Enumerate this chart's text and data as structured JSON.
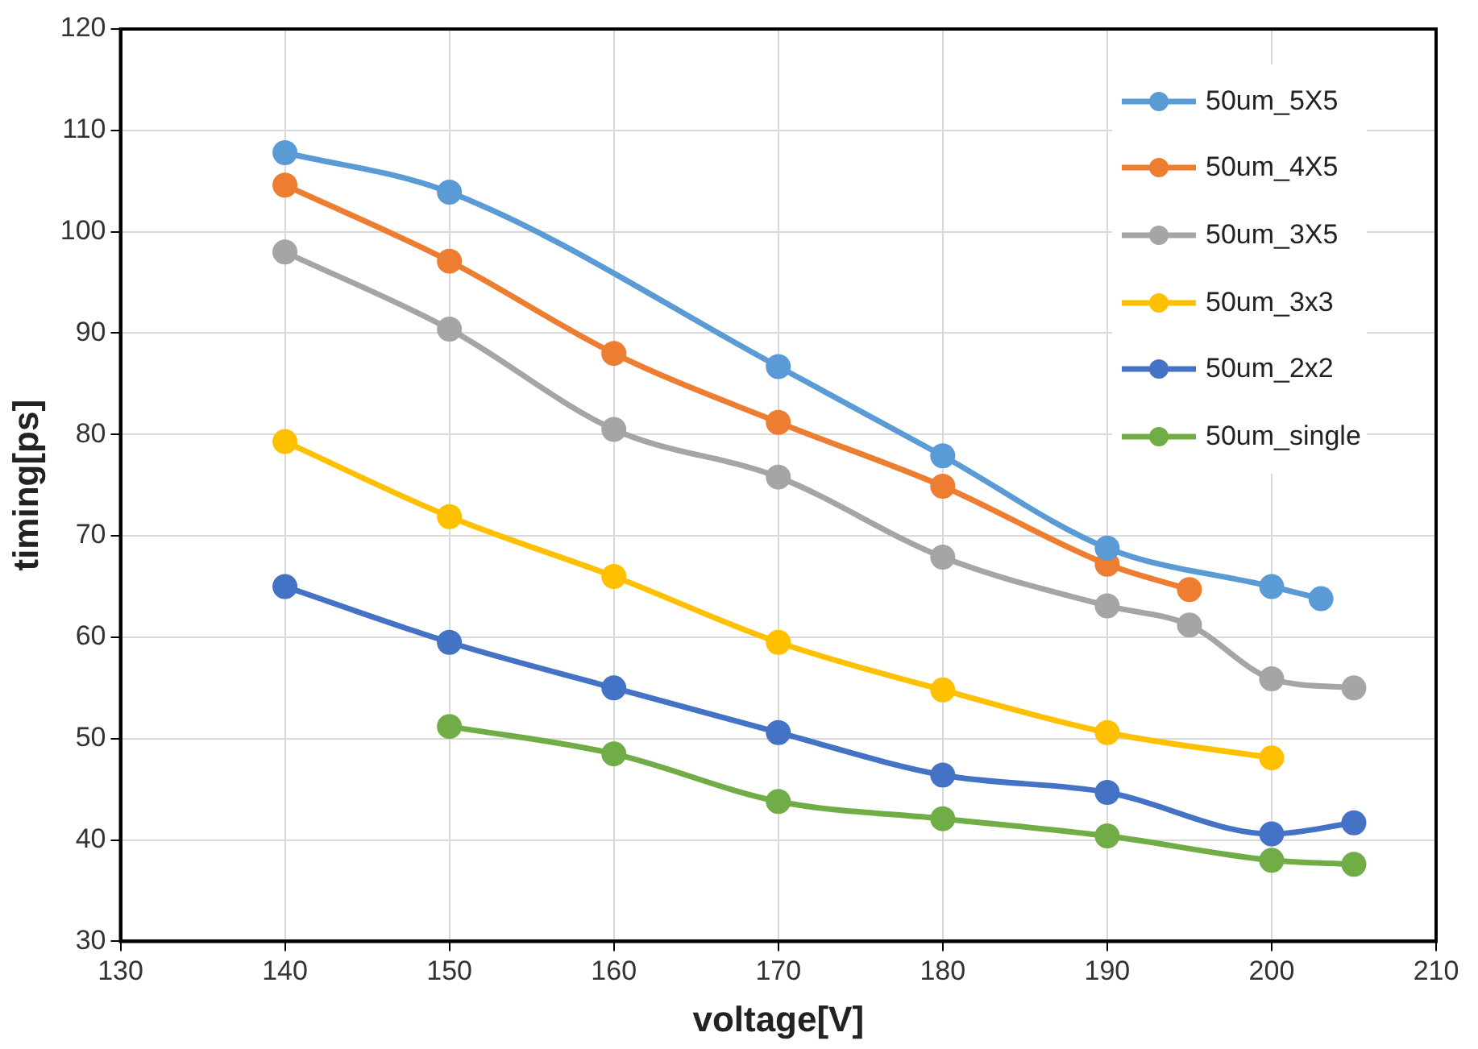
{
  "chart_data": {
    "type": "line",
    "xlabel": "voltage[V]",
    "ylabel": "timing[ps]",
    "xlim": [
      130,
      210
    ],
    "xticks": [
      130,
      140,
      150,
      160,
      170,
      180,
      190,
      200,
      210
    ],
    "ylim": [
      30,
      120
    ],
    "yticks": [
      30,
      40,
      50,
      60,
      70,
      80,
      90,
      100,
      110,
      120
    ],
    "grid": true,
    "legend": "top right",
    "marker": "circle",
    "line_style": "solid",
    "series": [
      {
        "name": "50um_5X5",
        "color": "#5b9bd5",
        "x": [
          140,
          150,
          170,
          180,
          190,
          200,
          203
        ],
        "values": [
          107.8,
          103.9,
          86.7,
          77.9,
          68.8,
          65.0,
          63.8
        ]
      },
      {
        "name": "50um_4X5",
        "color": "#ed7d31",
        "x": [
          140,
          150,
          160,
          170,
          180,
          190,
          195
        ],
        "values": [
          104.6,
          97.1,
          88.0,
          81.2,
          74.9,
          67.2,
          64.7
        ]
      },
      {
        "name": "50um_3X5",
        "color": "#a5a5a5",
        "x": [
          140,
          150,
          160,
          170,
          180,
          190,
          195,
          200,
          205
        ],
        "values": [
          98.0,
          90.4,
          80.5,
          75.8,
          67.9,
          63.1,
          61.2,
          55.9,
          55.0
        ]
      },
      {
        "name": "50um_3x3",
        "color": "#ffc000",
        "x": [
          140,
          150,
          160,
          170,
          180,
          190,
          200
        ],
        "values": [
          79.3,
          71.9,
          66.0,
          59.5,
          54.8,
          50.6,
          48.1
        ]
      },
      {
        "name": "50um_2x2",
        "color": "#4472c4",
        "x": [
          140,
          150,
          160,
          170,
          180,
          190,
          200,
          205
        ],
        "values": [
          65.0,
          59.5,
          55.0,
          50.6,
          46.4,
          44.7,
          40.6,
          41.7
        ]
      },
      {
        "name": "50um_single",
        "color": "#70ad47",
        "x": [
          150,
          160,
          170,
          180,
          190,
          200,
          205
        ],
        "values": [
          51.2,
          48.5,
          43.8,
          42.1,
          40.4,
          38.0,
          37.6
        ]
      }
    ]
  }
}
